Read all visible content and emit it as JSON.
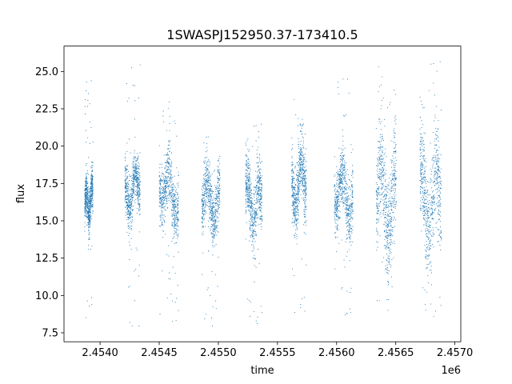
{
  "chart_data": {
    "type": "scatter",
    "title": "1SWASPJ152950.37-173410.5",
    "xlabel": "time",
    "ylabel": "flux",
    "x_offset_label": "1e6",
    "xlim": [
      2453690,
      2457045
    ],
    "ylim": [
      6.9,
      26.7
    ],
    "x_ticks": [
      2453995,
      2454495,
      2454995,
      2455495,
      2455995,
      2456495,
      2456995
    ],
    "x_tick_labels": [
      "2.4540",
      "2.4545",
      "2.4550",
      "2.4555",
      "2.4560",
      "2.4565",
      "2.4570"
    ],
    "y_ticks": [
      7.5,
      10.0,
      12.5,
      15.0,
      17.5,
      20.0,
      22.5,
      25.0
    ],
    "y_tick_labels": [
      "7.5",
      "10.0",
      "12.5",
      "15.0",
      "17.5",
      "20.0",
      "22.5",
      "25.0"
    ],
    "grid": false,
    "marker_color": "#1f77b4",
    "seasons": [
      {
        "x_range": [
          2453865,
          2453935
        ],
        "center": 16.2,
        "spread": 1.3,
        "trend": 0.6,
        "outlier_range": [
          7.9,
          24.8
        ]
      },
      {
        "x_range": [
          2454205,
          2454335
        ],
        "center": 17.0,
        "spread": 1.6,
        "trend": 1.2,
        "outlier_range": [
          7.9,
          25.7
        ]
      },
      {
        "x_range": [
          2454495,
          2454660
        ],
        "center": 17.0,
        "spread": 1.8,
        "trend": -1.5,
        "outlier_range": [
          8.0,
          23.0
        ]
      },
      {
        "x_range": [
          2454855,
          2455010
        ],
        "center": 16.3,
        "spread": 1.7,
        "trend": -0.8,
        "outlier_range": [
          7.8,
          20.5
        ]
      },
      {
        "x_range": [
          2455225,
          2455365
        ],
        "center": 16.3,
        "spread": 1.9,
        "trend": -0.6,
        "outlier_range": [
          7.9,
          21.5
        ]
      },
      {
        "x_range": [
          2455615,
          2455740
        ],
        "center": 17.5,
        "spread": 2.0,
        "trend": 1.5,
        "outlier_range": [
          8.6,
          24.0
        ]
      },
      {
        "x_range": [
          2455975,
          2456135
        ],
        "center": 16.8,
        "spread": 1.9,
        "trend": -1.2,
        "outlier_range": [
          8.5,
          25.0
        ]
      },
      {
        "x_range": [
          2456330,
          2456500
        ],
        "center": 16.3,
        "spread": 3.0,
        "trend": -1.0,
        "outlier_range": [
          8.8,
          25.7
        ]
      },
      {
        "x_range": [
          2456700,
          2456880
        ],
        "center": 16.6,
        "spread": 3.0,
        "trend": -0.5,
        "outlier_range": [
          8.1,
          25.7
        ]
      }
    ]
  }
}
